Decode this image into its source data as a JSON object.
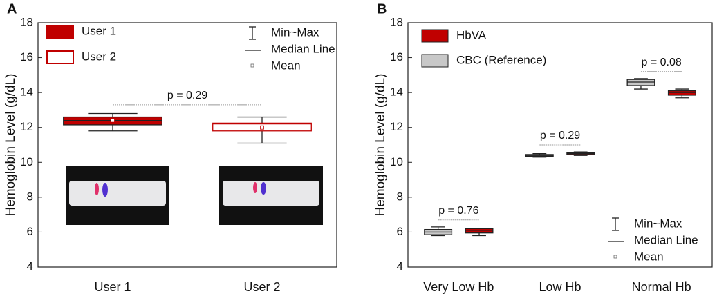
{
  "chart_data": [
    {
      "type": "box",
      "panel": "A",
      "ylabel": "Hemoglobin Level (g/dL)",
      "categories": [
        "User 1",
        "User 2"
      ],
      "min": [
        11.8,
        11.1
      ],
      "q1": [
        12.15,
        11.8
      ],
      "median": [
        12.4,
        12.2
      ],
      "q3": [
        12.6,
        12.25
      ],
      "max": [
        12.8,
        12.6
      ],
      "mean": [
        12.4,
        12.0
      ],
      "fills": [
        "#c00000",
        "#ffffff"
      ],
      "edge": "#c00000",
      "annotations": [
        {
          "text": "p = 0.29",
          "between": [
            0,
            1
          ]
        }
      ],
      "key": [
        "Min~Max",
        "Median Line",
        "Mean"
      ],
      "ylim": [
        4,
        18
      ],
      "yticks": [
        4,
        6,
        8,
        10,
        12,
        14,
        16,
        18
      ]
    },
    {
      "type": "grouped-box",
      "panel": "B",
      "ylabel": "Hemoglobin Level (g/dL)",
      "categories": [
        "Very Low Hb",
        "Low Hb",
        "Normal Hb"
      ],
      "series": [
        {
          "name": "CBC (Reference)",
          "color": "#c8c8c8",
          "min": [
            5.8,
            10.3,
            14.2
          ],
          "q1": [
            5.85,
            10.35,
            14.4
          ],
          "median": [
            6.0,
            10.4,
            14.6
          ],
          "q3": [
            6.15,
            10.45,
            14.75
          ],
          "max": [
            6.3,
            10.5,
            14.8
          ]
        },
        {
          "name": "HbVA",
          "color": "#c00000",
          "min": [
            5.8,
            10.4,
            13.7
          ],
          "q1": [
            5.95,
            10.45,
            13.85
          ],
          "median": [
            6.1,
            10.5,
            14.0
          ],
          "q3": [
            6.2,
            10.55,
            14.1
          ],
          "max": [
            6.2,
            10.6,
            14.2
          ]
        }
      ],
      "annotations": [
        {
          "text": "p = 0.76",
          "category": 0
        },
        {
          "text": "p = 0.29",
          "category": 1
        },
        {
          "text": "p = 0.08",
          "category": 2
        }
      ],
      "key": [
        "Min~Max",
        "Median Line",
        "Mean"
      ],
      "ylim": [
        4,
        18
      ],
      "yticks": [
        4,
        6,
        8,
        10,
        12,
        14,
        16,
        18
      ]
    }
  ]
}
